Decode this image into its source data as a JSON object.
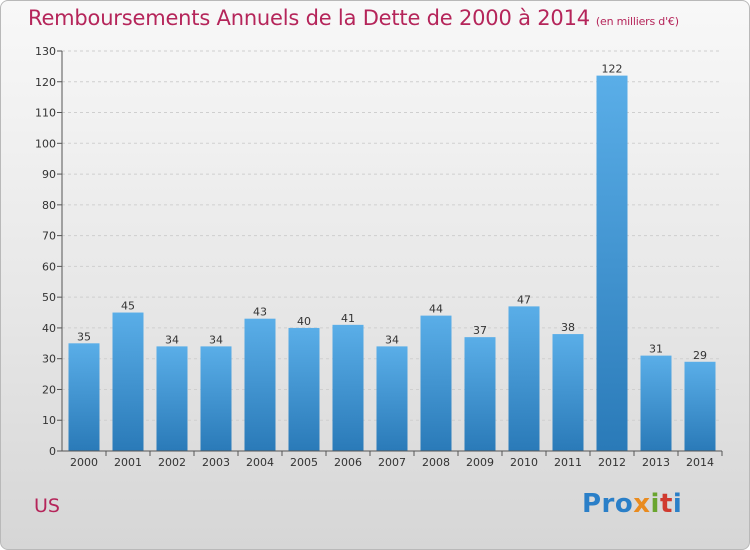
{
  "title": "Remboursements Annuels de la Dette de 2000 à 2014",
  "subtitle": "(en milliers d'€)",
  "commune": "US",
  "logo": [
    "Pro",
    "x",
    "i",
    "t",
    "i"
  ],
  "colors": {
    "title": "#b5255a",
    "bar_top": "#5aaee8",
    "bar_bottom": "#2a7ab8",
    "grid": "#cfcfcf",
    "axis": "#555555"
  },
  "chart_data": {
    "type": "bar",
    "title": "Remboursements Annuels de la Dette de 2000 à 2014",
    "subtitle": "(en milliers d'€)",
    "categories": [
      "2000",
      "2001",
      "2002",
      "2003",
      "2004",
      "2005",
      "2006",
      "2007",
      "2008",
      "2009",
      "2010",
      "2011",
      "2012",
      "2013",
      "2014"
    ],
    "values": [
      35,
      45,
      34,
      34,
      43,
      40,
      41,
      34,
      44,
      37,
      47,
      38,
      122,
      31,
      29
    ],
    "ylim": [
      0,
      130
    ],
    "yticks": [
      0,
      10,
      20,
      30,
      40,
      50,
      60,
      70,
      80,
      90,
      100,
      110,
      120,
      130
    ],
    "grid": true,
    "data_labels": true
  }
}
